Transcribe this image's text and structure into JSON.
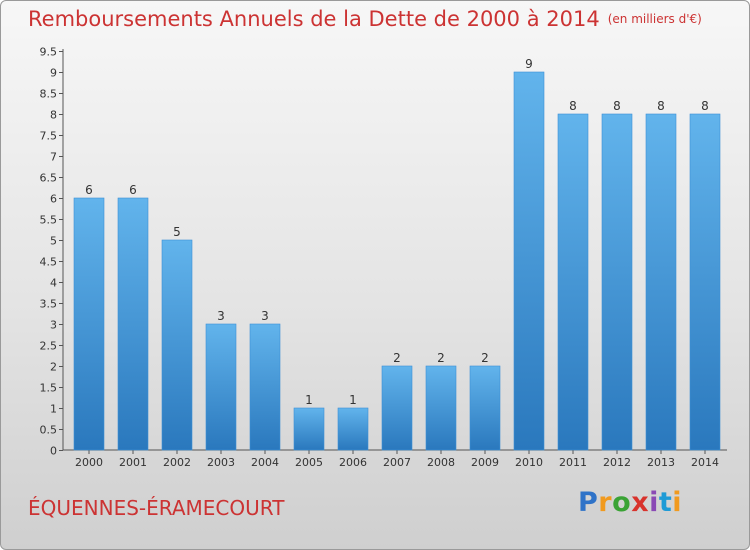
{
  "header": {
    "title": "Remboursements Annuels de la Dette de 2000 à 2014",
    "unit": "(en milliers d'€)"
  },
  "footer": {
    "town": "ÉQUENNES-ÉRAMECOURT",
    "logo": "Proxiti"
  },
  "colors": {
    "bar_light": "#62b4ec",
    "bar_dark": "#2a78bd",
    "title": "#cc3333"
  },
  "chart_data": {
    "type": "bar",
    "title": "Remboursements Annuels de la Dette de 2000 à 2014",
    "xlabel": "",
    "ylabel": "",
    "categories": [
      "2000",
      "2001",
      "2002",
      "2003",
      "2004",
      "2005",
      "2006",
      "2007",
      "2008",
      "2009",
      "2010",
      "2011",
      "2012",
      "2013",
      "2014"
    ],
    "values": [
      6,
      6,
      5,
      3,
      3,
      1,
      1,
      2,
      2,
      2,
      9,
      8,
      8,
      8,
      8
    ],
    "data_labels": [
      "6",
      "6",
      "5",
      "3",
      "3",
      "1",
      "1",
      "2",
      "2",
      "2",
      "9",
      "8",
      "8",
      "8",
      "8"
    ],
    "ylim": [
      0,
      9.5
    ],
    "yticks": [
      0,
      0.5,
      1,
      1.5,
      2,
      2.5,
      3,
      3.5,
      4,
      4.5,
      5,
      5.5,
      6,
      6.5,
      7,
      7.5,
      8,
      8.5,
      9,
      9.5
    ],
    "ytick_labels": [
      "0",
      "0.5",
      "1",
      "1.5",
      "2",
      "2.5",
      "3",
      "3.5",
      "4",
      "4.5",
      "5",
      "5.5",
      "6",
      "6.5",
      "7",
      "7.5",
      "8",
      "8.5",
      "9",
      "9.5"
    ],
    "grid": false,
    "legend": "none"
  }
}
